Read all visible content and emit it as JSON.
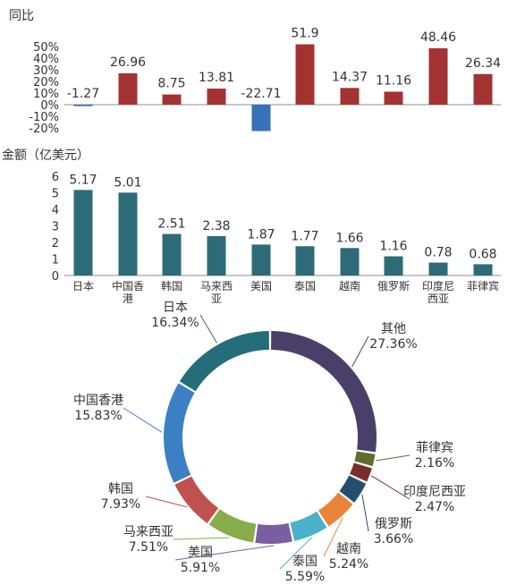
{
  "colors": {
    "positive": "#a33332",
    "negative": "#3771b8",
    "amount": "#2e6b78",
    "axis": "#8c8c8c",
    "text": "#333333",
    "ring": [
      "#4b3f6a",
      "#5d6e2d",
      "#7a2f2d",
      "#274d6e",
      "#e8853a",
      "#4ab0cc",
      "#7a5fa0",
      "#86ad4a",
      "#c0514e",
      "#3b7fc4",
      "#256e79"
    ]
  },
  "chart_data": [
    {
      "type": "bar",
      "title": "同比",
      "categories": [
        "日本",
        "中国香港",
        "韩国",
        "马来西亚",
        "美国",
        "泰国",
        "越南",
        "俄罗斯",
        "印度尼西亚",
        "菲律宾"
      ],
      "values": [
        -1.27,
        26.96,
        8.75,
        13.81,
        -22.71,
        51.9,
        14.37,
        11.16,
        48.46,
        26.34
      ],
      "value_labels": [
        "-1.27",
        "26.96",
        "8.75",
        "13.81",
        "-22.71",
        "51.9",
        "14.37",
        "11.16",
        "48.46",
        "26.34"
      ],
      "ylim": [
        -20,
        50
      ],
      "yticks": [
        "50%",
        "40%",
        "30%",
        "20%",
        "10%",
        "0%",
        "-10%",
        "-20%"
      ],
      "ytick_values": [
        50,
        40,
        30,
        20,
        10,
        0,
        -10,
        -20
      ],
      "grid": false
    },
    {
      "type": "bar",
      "title": "金额（亿美元）",
      "categories": [
        "日本",
        "中国香港",
        "韩国",
        "马来西亚",
        "美国",
        "泰国",
        "越南",
        "俄罗斯",
        "印度尼西亚",
        "菲律宾"
      ],
      "category_lines": [
        [
          "日本"
        ],
        [
          "中国香",
          "港"
        ],
        [
          "韩国"
        ],
        [
          "马来西",
          "亚"
        ],
        [
          "美国"
        ],
        [
          "泰国"
        ],
        [
          "越南"
        ],
        [
          "俄罗斯"
        ],
        [
          "印度尼",
          "西亚"
        ],
        [
          "菲律宾"
        ]
      ],
      "values": [
        5.17,
        5.01,
        2.51,
        2.38,
        1.87,
        1.77,
        1.66,
        1.16,
        0.78,
        0.68
      ],
      "value_labels": [
        "5.17",
        "5.01",
        "2.51",
        "2.38",
        "1.87",
        "1.77",
        "1.66",
        "1.16",
        "0.78",
        "0.68"
      ],
      "ylim": [
        0,
        6
      ],
      "yticks": [
        "6",
        "5",
        "4",
        "3",
        "2",
        "1",
        "0"
      ],
      "ytick_values": [
        6,
        5,
        4,
        3,
        2,
        1,
        0
      ],
      "grid": false
    },
    {
      "type": "pie",
      "donut": true,
      "slices": [
        {
          "label": "其他",
          "value": 27.36,
          "text": "27.36%"
        },
        {
          "label": "菲律宾",
          "value": 2.16,
          "text": "2.16%"
        },
        {
          "label": "印度尼西亚",
          "value": 2.47,
          "text": "2.47%"
        },
        {
          "label": "俄罗斯",
          "value": 3.66,
          "text": "3.66%"
        },
        {
          "label": "越南",
          "value": 5.24,
          "text": "5.24%"
        },
        {
          "label": "泰国",
          "value": 5.59,
          "text": "5.59%"
        },
        {
          "label": "美国",
          "value": 5.91,
          "text": "5.91%"
        },
        {
          "label": "马来西亚",
          "value": 7.51,
          "text": "7.51%"
        },
        {
          "label": "韩国",
          "value": 7.93,
          "text": "7.93%"
        },
        {
          "label": "中国香港",
          "value": 15.83,
          "text": "15.83%"
        },
        {
          "label": "日本",
          "value": 16.34,
          "text": "16.34%"
        }
      ]
    }
  ]
}
